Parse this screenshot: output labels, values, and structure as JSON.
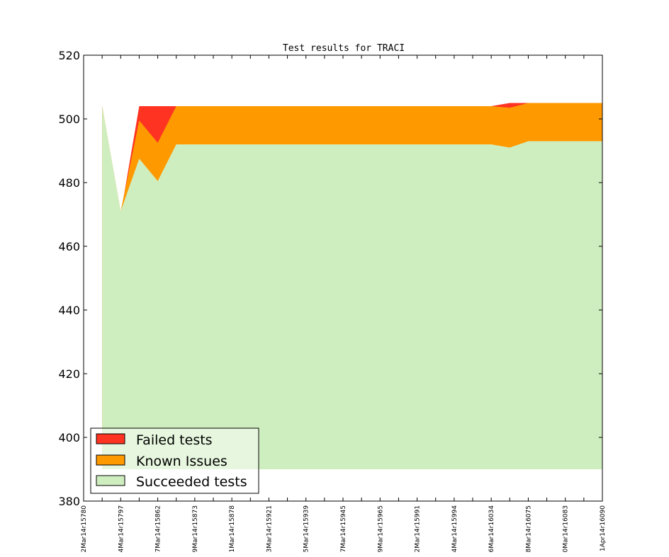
{
  "chart_data": {
    "type": "area",
    "stacked": true,
    "title": "Test results for TRACI",
    "xlabel": "",
    "ylabel": "",
    "ylim": [
      380,
      520
    ],
    "yticks": [
      380,
      400,
      420,
      440,
      460,
      480,
      500,
      520
    ],
    "categories": [
      "2Mar14r15780",
      "",
      "4Mar14r15797",
      "",
      "7Mar14r15862",
      "",
      "9Mar14r15873",
      "",
      "1Mar14r15878",
      "",
      "3Mar14r15921",
      "",
      "5Mar14r15939",
      "",
      "7Mar14r15945",
      "",
      "9Mar14r15965",
      "",
      "2Mar14r15991",
      "",
      "4Mar14r15994",
      "",
      "6Mar14r16034",
      "",
      "8Mar14r16075",
      "",
      "0Mar14r16083",
      "",
      "1Apr14r16090"
    ],
    "series": [
      {
        "name": "Succeeded tests",
        "color": "#cfeebf",
        "values": [
          null,
          390,
          390,
          390,
          390,
          390,
          390,
          390,
          390,
          390,
          390,
          390,
          390,
          390,
          390,
          390,
          390,
          390,
          390,
          390,
          390,
          390,
          390,
          390,
          390,
          390,
          390,
          390,
          390
        ],
        "top": [
          null,
          504,
          471,
          487.5,
          480.5,
          492,
          492,
          492,
          492,
          492,
          492,
          492,
          492,
          492,
          492,
          492,
          492,
          492,
          492,
          492,
          492,
          492,
          492,
          491,
          493,
          493,
          493,
          493,
          493
        ]
      },
      {
        "name": "Known Issues",
        "color": "#ff9900",
        "top": [
          null,
          504,
          471,
          499.5,
          492.5,
          504,
          504,
          504,
          504,
          504,
          504,
          504,
          504,
          504,
          504,
          504,
          504,
          504,
          504,
          504,
          504,
          504,
          504,
          503.5,
          505,
          505,
          505,
          505,
          505
        ]
      },
      {
        "name": "Failed tests",
        "color": "#ff3322",
        "top": [
          null,
          504,
          470,
          504,
          504,
          504,
          504,
          504,
          504,
          504,
          504,
          504,
          504,
          504,
          504,
          504,
          504,
          504,
          504,
          504,
          504,
          504,
          504,
          505,
          505,
          505,
          505,
          505,
          505
        ]
      }
    ],
    "legend": {
      "placement": "lower-left",
      "entries": [
        "Failed tests",
        "Known Issues",
        "Succeeded tests"
      ]
    },
    "grid": false
  }
}
